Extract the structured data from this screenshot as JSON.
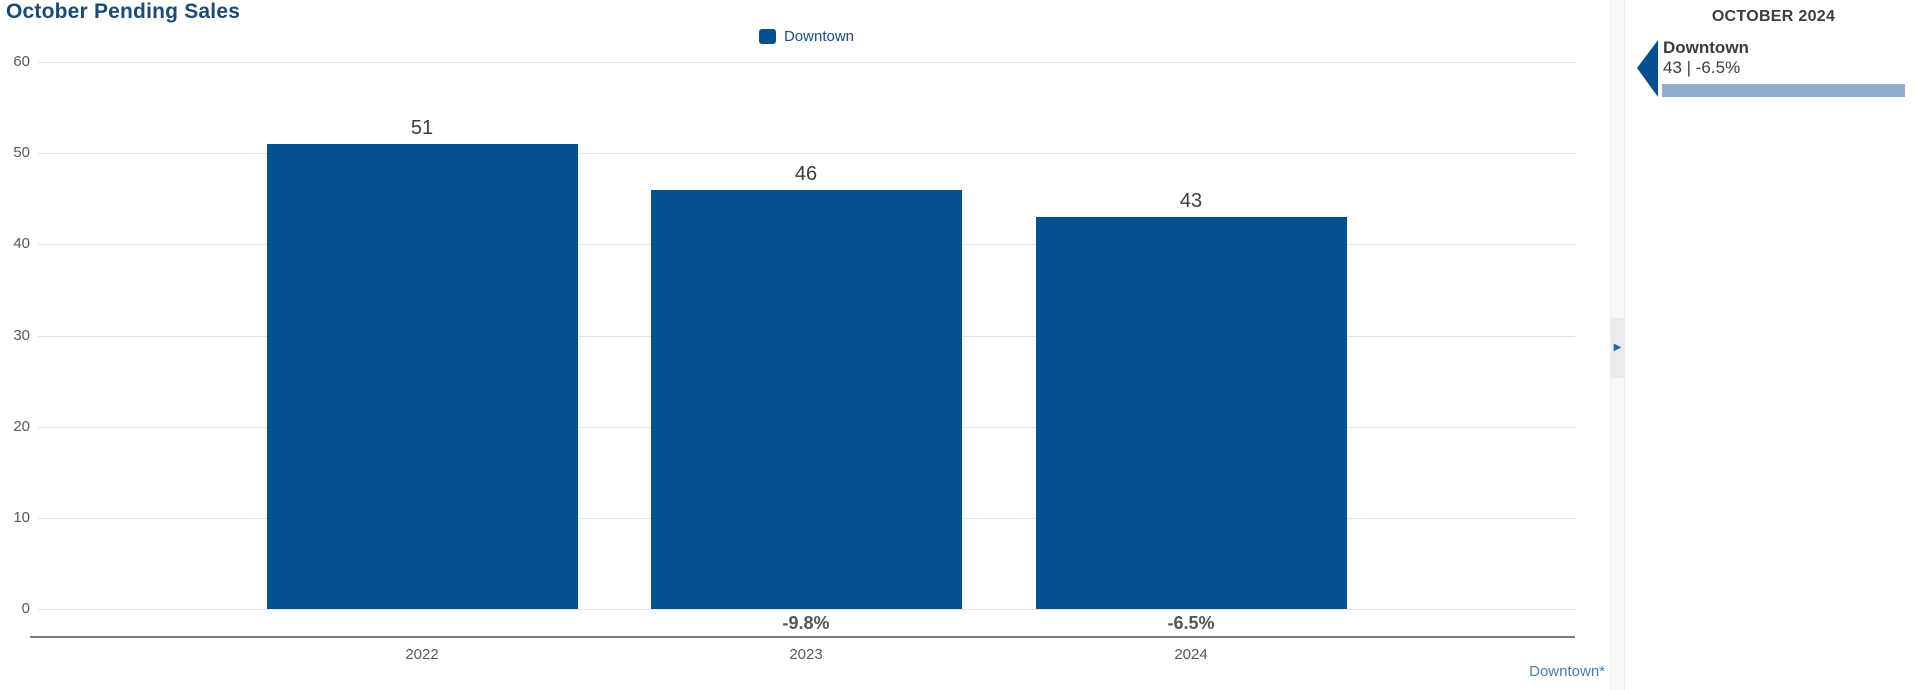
{
  "title": "October Pending Sales",
  "legend": {
    "label": "Downtown"
  },
  "chart_data": {
    "type": "bar",
    "title": "October Pending Sales",
    "series_name": "Downtown",
    "categories": [
      "2022",
      "2023",
      "2024"
    ],
    "values": [
      51,
      46,
      43
    ],
    "bar_labels": [
      "51",
      "46",
      "43"
    ],
    "pct_change_labels": [
      "",
      "-9.8%",
      "-6.5%"
    ],
    "ylim": [
      0,
      60
    ],
    "yticks": [
      0,
      10,
      20,
      30,
      40,
      50,
      60
    ],
    "grid": true,
    "legend_position": "top-center",
    "bar_color": "#05508f"
  },
  "footnote_link": "Downtown*",
  "toggle": {
    "expand_icon": "▶"
  },
  "sidebar": {
    "header": "OCTOBER 2024",
    "item": {
      "name": "Downtown",
      "value": "43 | -6.5%"
    }
  },
  "colors": {
    "bar": "#05508f",
    "title": "#1b4a73",
    "legend_text": "#1c4d7d",
    "sidebar_bar": "#92aecf",
    "link": "#4b7bab",
    "toggle_arrow": "#1565c0"
  }
}
